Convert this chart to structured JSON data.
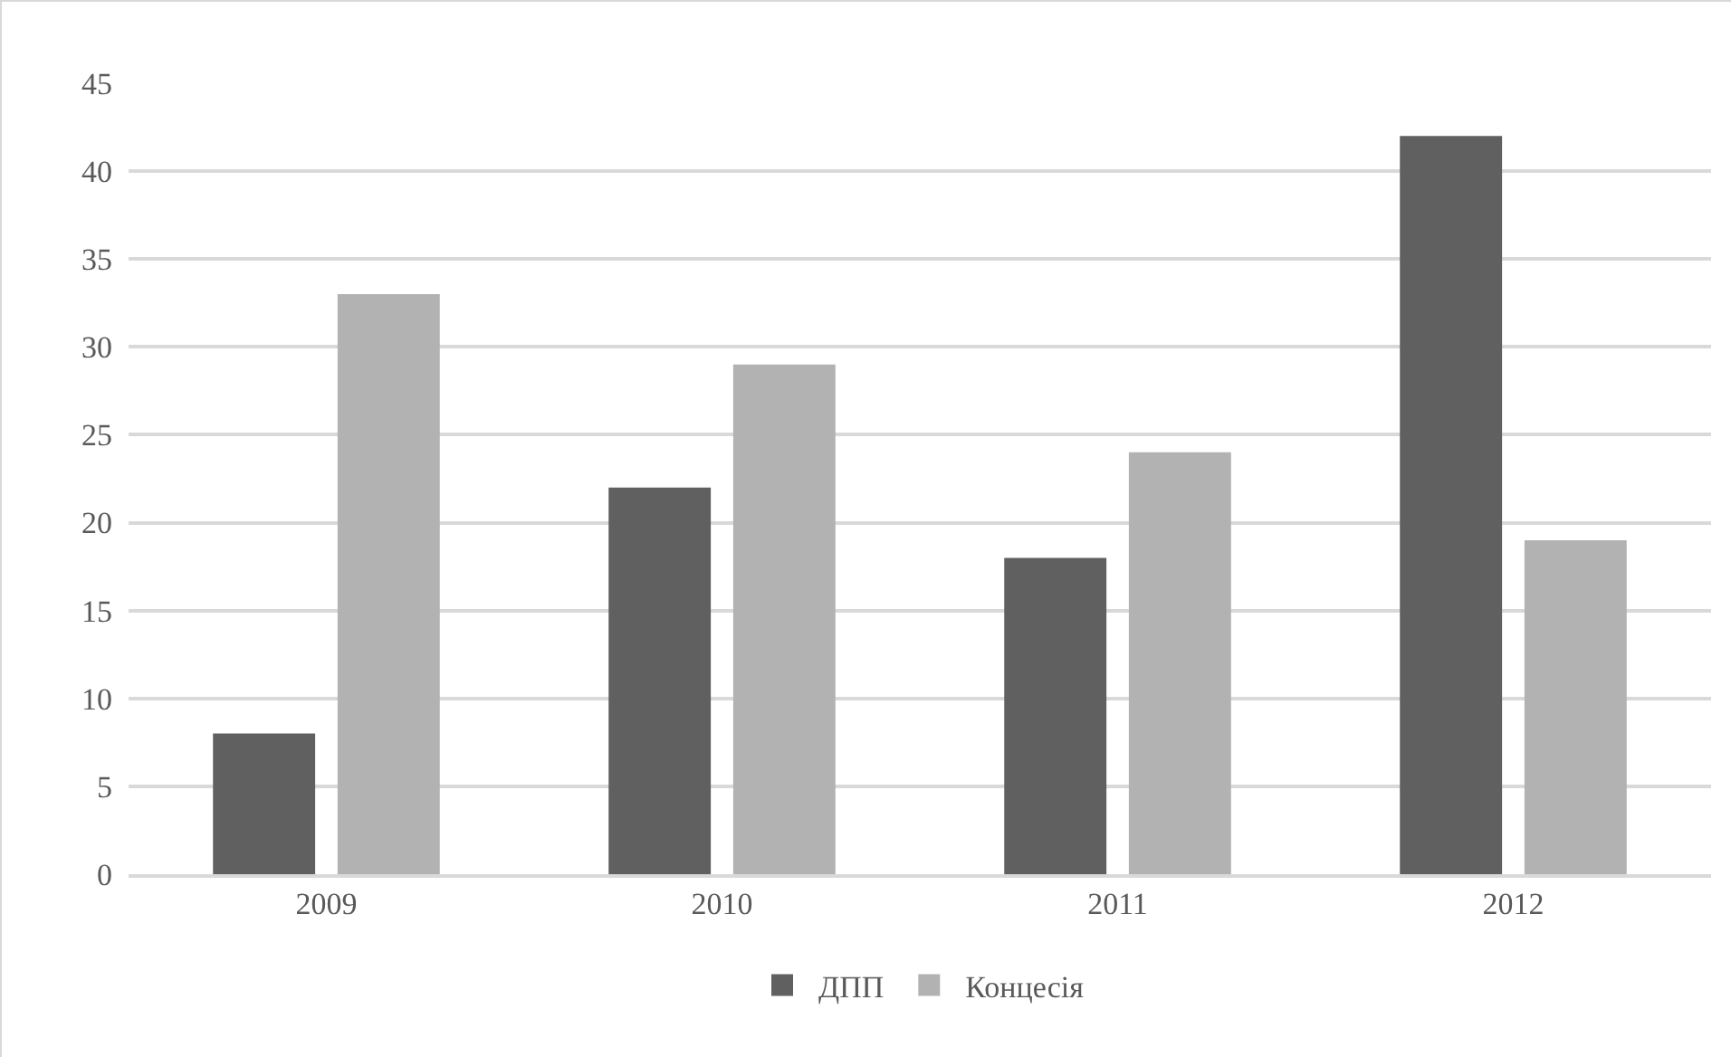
{
  "chart_data": {
    "type": "bar",
    "categories": [
      "2009",
      "2010",
      "2011",
      "2012"
    ],
    "series": [
      {
        "name": "ДПП",
        "color": "#606060",
        "values": [
          8,
          22,
          18,
          42
        ]
      },
      {
        "name": "Концесія",
        "color": "#b2b2b2",
        "values": [
          33,
          29,
          24,
          19
        ]
      }
    ],
    "ylim": [
      0,
      45
    ],
    "yticks": [
      0,
      5,
      10,
      15,
      20,
      25,
      30,
      35,
      40,
      45
    ],
    "grid": "y",
    "legend": "bottom"
  }
}
